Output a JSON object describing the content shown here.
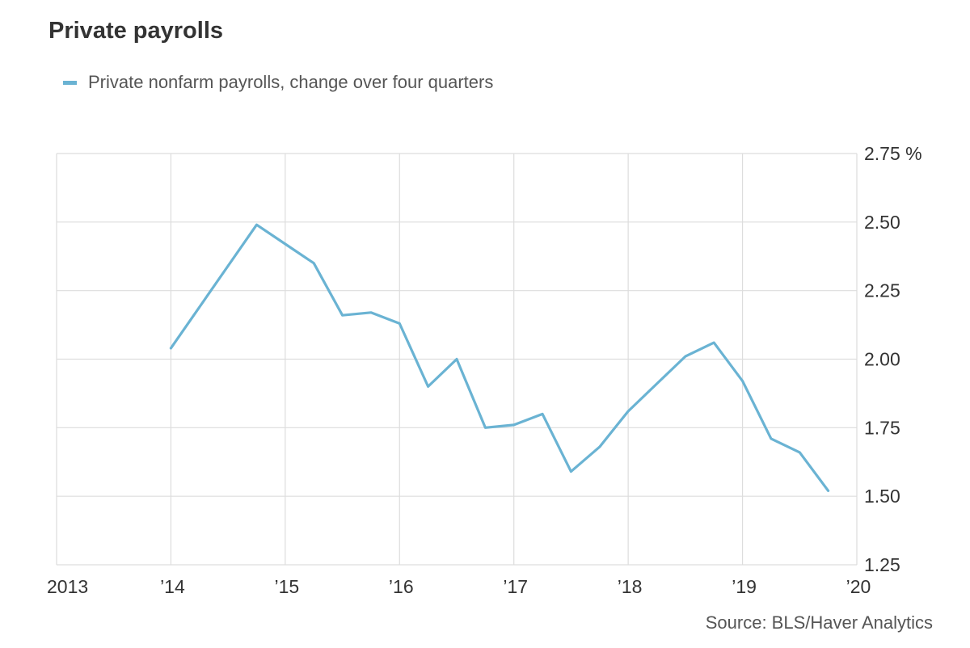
{
  "title": "Private payrolls",
  "source": "Source: BLS/Haver Analytics",
  "colors": {
    "series": "#6ab3d3",
    "grid": "#dddddd",
    "text": "#333333"
  },
  "chart_data": {
    "type": "line",
    "title": "Private payrolls",
    "xlabel": "",
    "ylabel": "%",
    "xlim": [
      2013,
      2020
    ],
    "ylim": [
      1.25,
      2.75
    ],
    "x_ticks": [
      {
        "value": 2013,
        "label": "2013"
      },
      {
        "value": 2014,
        "label": "’14"
      },
      {
        "value": 2015,
        "label": "’15"
      },
      {
        "value": 2016,
        "label": "’16"
      },
      {
        "value": 2017,
        "label": "’17"
      },
      {
        "value": 2018,
        "label": "’18"
      },
      {
        "value": 2019,
        "label": "’19"
      },
      {
        "value": 2020,
        "label": "’20"
      }
    ],
    "y_ticks": [
      {
        "value": 2.75,
        "label": "2.75 %"
      },
      {
        "value": 2.5,
        "label": "2.50"
      },
      {
        "value": 2.25,
        "label": "2.25"
      },
      {
        "value": 2.0,
        "label": "2.00"
      },
      {
        "value": 1.75,
        "label": "1.75"
      },
      {
        "value": 1.5,
        "label": "1.50"
      },
      {
        "value": 1.25,
        "label": "1.25"
      }
    ],
    "grid": true,
    "legend_position": "top-left",
    "series": [
      {
        "name": "Private nonfarm payrolls, change over four quarters",
        "x": [
          2014.0,
          2014.25,
          2014.5,
          2014.75,
          2015.0,
          2015.25,
          2015.5,
          2015.75,
          2016.0,
          2016.25,
          2016.5,
          2016.75,
          2017.0,
          2017.25,
          2017.5,
          2017.75,
          2018.0,
          2018.25,
          2018.5,
          2018.75,
          2019.0,
          2019.25,
          2019.5,
          2019.75
        ],
        "values": [
          2.04,
          2.19,
          2.34,
          2.49,
          2.42,
          2.35,
          2.16,
          2.17,
          2.13,
          1.9,
          2.0,
          1.75,
          1.76,
          1.8,
          1.59,
          1.68,
          1.81,
          1.91,
          2.01,
          2.06,
          1.92,
          1.71,
          1.66,
          1.52
        ]
      }
    ]
  }
}
